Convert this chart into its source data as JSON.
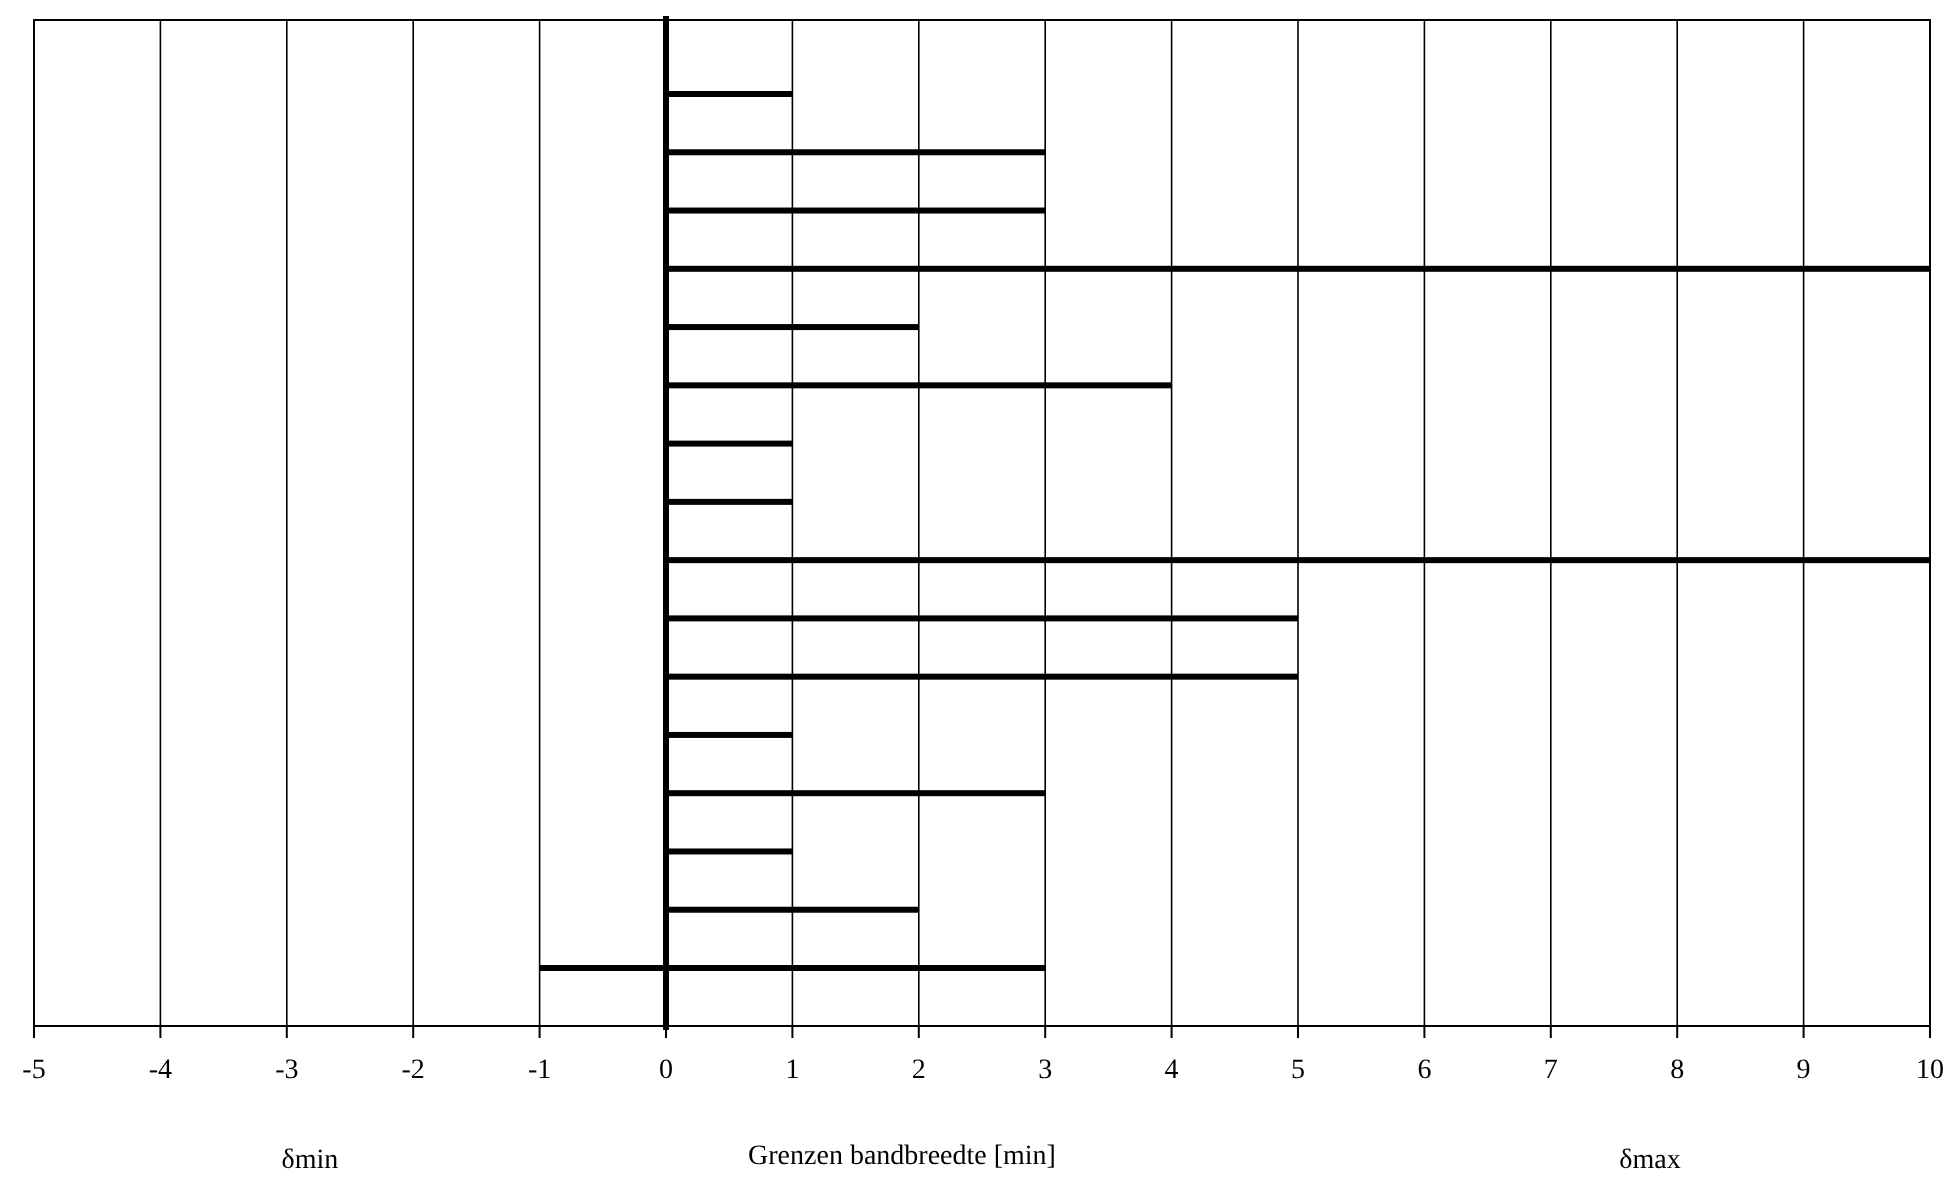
{
  "chart_data": {
    "type": "bar",
    "orientation": "horizontal",
    "xlabel": "Grenzen bandbreedte [min]",
    "annotations": [
      "δmin",
      "δmax"
    ],
    "categories": [
      null,
      null,
      null,
      null,
      null,
      null,
      null,
      null,
      null,
      null,
      null,
      null,
      null,
      null,
      null,
      null
    ],
    "values": [
      1,
      3,
      3,
      10,
      2,
      4,
      1,
      1,
      10,
      5,
      5,
      1,
      3,
      1,
      2,
      4
    ],
    "base": [
      0,
      0,
      0,
      0,
      0,
      0,
      0,
      0,
      0,
      0,
      0,
      0,
      0,
      0,
      0,
      -1
    ],
    "color": "#000000",
    "xlim": [
      -5,
      10
    ],
    "xticks": [
      -5,
      -4,
      -3,
      -2,
      -1,
      0,
      1,
      2,
      3,
      4,
      5,
      6,
      7,
      8,
      9,
      10
    ],
    "grid": "x",
    "tick_labels": "x"
  }
}
